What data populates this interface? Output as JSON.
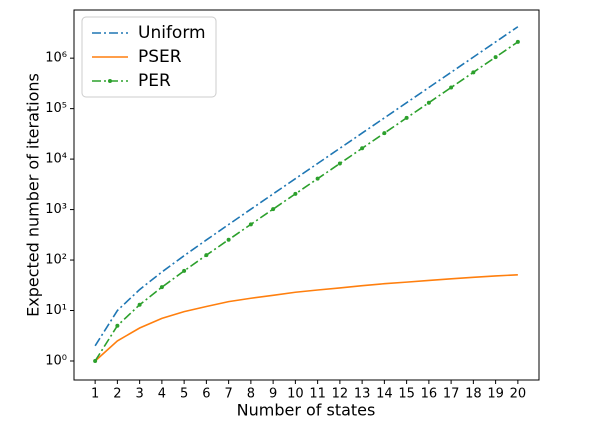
{
  "chart_data": {
    "type": "line",
    "xlabel": "Number of states",
    "ylabel": "Expected number of iterations",
    "x": [
      1,
      2,
      3,
      4,
      5,
      6,
      7,
      8,
      9,
      10,
      11,
      12,
      13,
      14,
      15,
      16,
      17,
      18,
      19,
      20
    ],
    "xlim": [
      0.05,
      20.95
    ],
    "xticks": [
      1,
      2,
      3,
      4,
      5,
      6,
      7,
      8,
      9,
      10,
      11,
      12,
      13,
      14,
      15,
      16,
      17,
      18,
      19,
      20
    ],
    "ylim": [
      0.42,
      9000000
    ],
    "yscale": "log",
    "yticks": [
      {
        "value": 1,
        "label": "10⁰"
      },
      {
        "value": 10,
        "label": "10¹"
      },
      {
        "value": 100,
        "label": "10²"
      },
      {
        "value": 1000,
        "label": "10³"
      },
      {
        "value": 10000,
        "label": "10⁴"
      },
      {
        "value": 100000,
        "label": "10⁵"
      },
      {
        "value": 1000000,
        "label": "10⁶"
      }
    ],
    "legend": "upper left",
    "series": [
      {
        "name": "Uniform",
        "color": "#1f77b4",
        "style": "dashdot",
        "values": [
          2,
          10,
          26,
          58,
          122,
          250,
          506,
          1018,
          2042,
          4090,
          8186,
          16378,
          32762,
          65530,
          131066,
          262138,
          524282,
          1048570,
          2097146,
          4194298
        ]
      },
      {
        "name": "PSER",
        "color": "#ff7f0e",
        "style": "solid",
        "values": [
          1,
          2.5,
          4.5,
          7,
          9.5,
          12,
          15,
          17.5,
          20,
          23,
          25.5,
          28,
          31,
          34,
          36.5,
          39.5,
          42.5,
          45.5,
          48.5,
          51
        ]
      },
      {
        "name": "PER",
        "color": "#2ca02c",
        "style": "dashdot-marker",
        "values": [
          1,
          5,
          13,
          29,
          61,
          125,
          253,
          509,
          1021,
          2045,
          4093,
          8189,
          16381,
          32765,
          65533,
          131069,
          262141,
          524285,
          1048573,
          2097149
        ]
      }
    ]
  }
}
